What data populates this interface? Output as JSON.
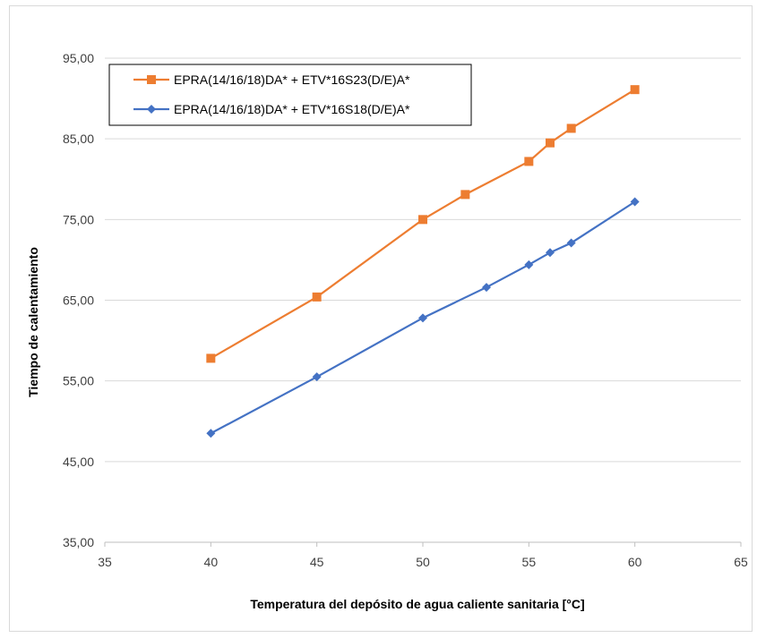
{
  "chart_data": {
    "type": "line",
    "title": "",
    "xlabel": "Temperatura del depósito de agua caliente sanitaria [°C]",
    "ylabel": "Tiempo de calentamiento",
    "xlim": [
      35,
      65
    ],
    "ylim": [
      35,
      95
    ],
    "x_ticks": [
      "35",
      "40",
      "45",
      "50",
      "55",
      "60",
      "65"
    ],
    "y_ticks": [
      "35,00",
      "45,00",
      "55,00",
      "65,00",
      "75,00",
      "85,00",
      "95,00"
    ],
    "grid": "horizontal",
    "legend_position": "top-left",
    "series": [
      {
        "name": "EPRA(14/16/18)DA* + ETV*16S23(D/E)A*",
        "color": "#ED7D31",
        "marker": "square",
        "x": [
          40,
          45,
          50,
          52,
          55,
          56,
          57,
          60
        ],
        "y": [
          57.8,
          65.4,
          75.0,
          78.1,
          82.2,
          84.5,
          86.3,
          91.1
        ]
      },
      {
        "name": "EPRA(14/16/18)DA* + ETV*16S18(D/E)A*",
        "color": "#4472C4",
        "marker": "diamond",
        "x": [
          40,
          45,
          50,
          53,
          55,
          56,
          57,
          60
        ],
        "y": [
          48.5,
          55.5,
          62.8,
          66.6,
          69.4,
          70.9,
          72.1,
          77.2
        ]
      }
    ]
  }
}
